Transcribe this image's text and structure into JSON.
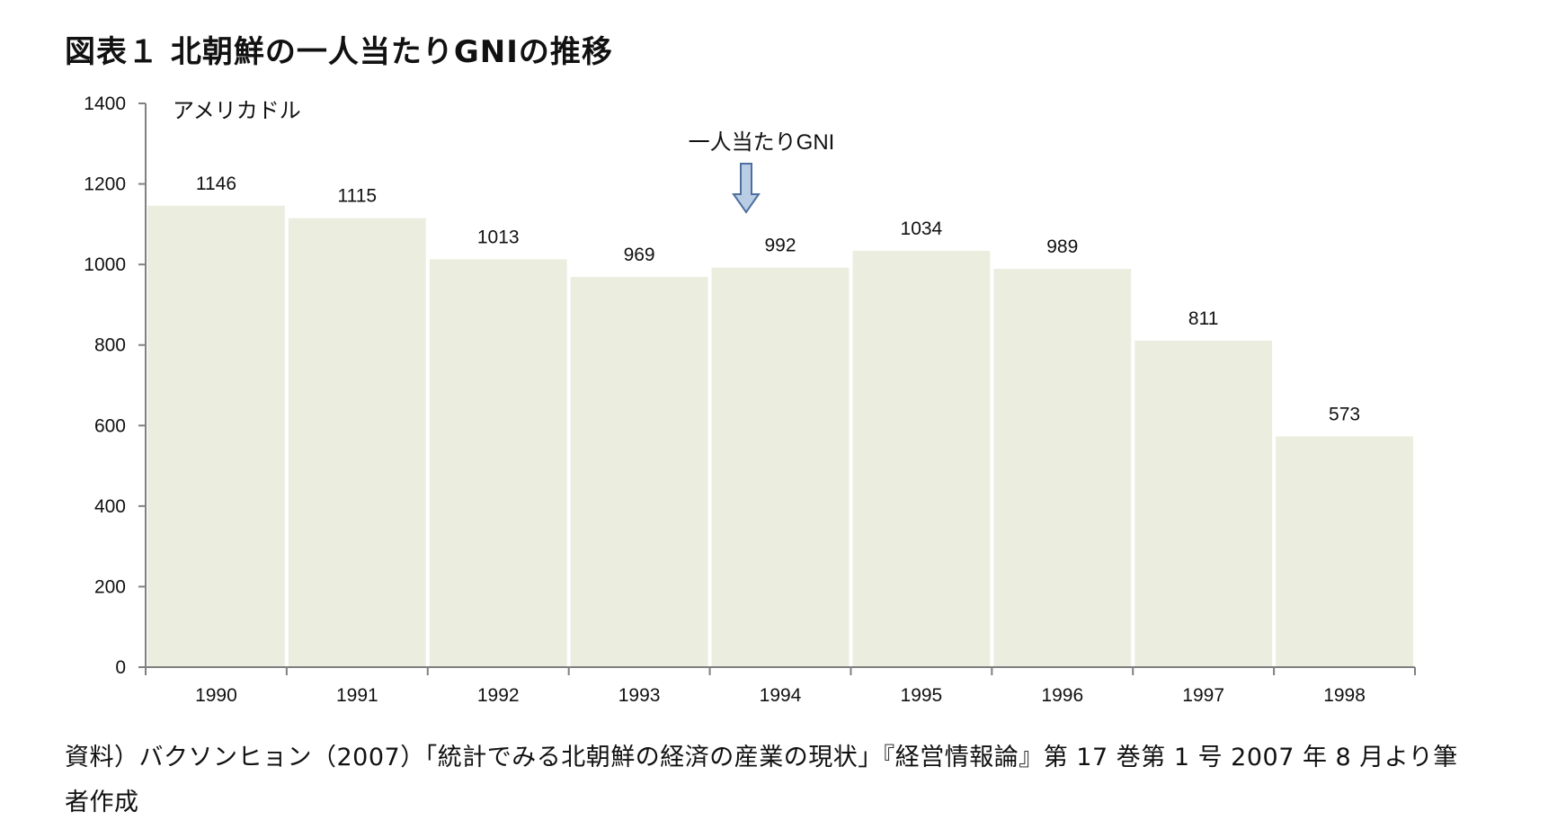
{
  "figure": {
    "title": "図表１ 北朝鮮の一人当たりGNIの推移",
    "source_note": "資料）バクソンヒョン（2007）「統計でみる北朝鮮の経済の産業の現状」『経営情報論』第 17 巻第 1 号 2007 年 8 月より筆者作成"
  },
  "chart_data": {
    "type": "bar",
    "title": "",
    "ylabel": "アメリカドル",
    "xlabel": "",
    "annotation": "一人当たりGNI",
    "categories": [
      "1990",
      "1991",
      "1992",
      "1993",
      "1994",
      "1995",
      "1996",
      "1997",
      "1998"
    ],
    "series": [
      {
        "name": "一人当たりGNI",
        "values": [
          1146,
          1115,
          1013,
          969,
          992,
          1034,
          989,
          811,
          573
        ]
      }
    ],
    "ylim": [
      0,
      1400
    ],
    "yticks": [
      0,
      200,
      400,
      600,
      800,
      1000,
      1200,
      1400
    ],
    "grid": false,
    "legend": "none",
    "data_labels": true,
    "colors": {
      "bar_fill": "#ebeedf",
      "axis": "#808080",
      "arrow_fill": "#b9cde5",
      "arrow_stroke": "#4f6f9e"
    }
  }
}
